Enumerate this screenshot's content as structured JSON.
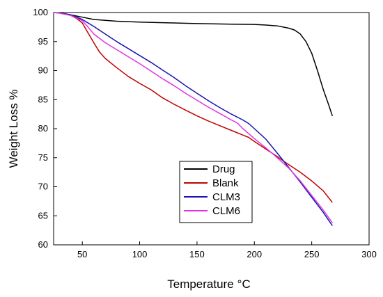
{
  "chart_data": {
    "type": "line",
    "title": "",
    "xlabel": "Temperature",
    "xlabel_unit": "°C",
    "ylabel": "Weight Loss %",
    "xlim": [
      25,
      300
    ],
    "ylim": [
      60,
      100
    ],
    "x_ticks": [
      50,
      100,
      150,
      200,
      250,
      300
    ],
    "y_ticks": [
      60,
      65,
      70,
      75,
      80,
      85,
      90,
      95,
      100
    ],
    "grid": false,
    "legend_position": "bottom-center",
    "series": [
      {
        "name": "Drug",
        "color": "#000000",
        "points": [
          [
            25,
            100
          ],
          [
            30,
            99.95
          ],
          [
            40,
            99.6
          ],
          [
            50,
            99.2
          ],
          [
            60,
            98.8
          ],
          [
            80,
            98.5
          ],
          [
            100,
            98.35
          ],
          [
            120,
            98.25
          ],
          [
            150,
            98.1
          ],
          [
            180,
            98.0
          ],
          [
            200,
            97.95
          ],
          [
            210,
            97.85
          ],
          [
            220,
            97.7
          ],
          [
            230,
            97.3
          ],
          [
            235,
            97.0
          ],
          [
            240,
            96.3
          ],
          [
            245,
            95.0
          ],
          [
            250,
            93.0
          ],
          [
            255,
            90.0
          ],
          [
            260,
            86.8
          ],
          [
            265,
            84.0
          ],
          [
            268,
            82.2
          ]
        ]
      },
      {
        "name": "Blank",
        "color": "#c00000",
        "points": [
          [
            25,
            100
          ],
          [
            30,
            99.9
          ],
          [
            40,
            99.5
          ],
          [
            45,
            99.0
          ],
          [
            50,
            98.2
          ],
          [
            55,
            96.5
          ],
          [
            60,
            94.8
          ],
          [
            65,
            93.2
          ],
          [
            70,
            92.1
          ],
          [
            80,
            90.5
          ],
          [
            90,
            89.0
          ],
          [
            100,
            87.8
          ],
          [
            110,
            86.7
          ],
          [
            120,
            85.3
          ],
          [
            130,
            84.2
          ],
          [
            140,
            83.2
          ],
          [
            150,
            82.2
          ],
          [
            160,
            81.3
          ],
          [
            170,
            80.5
          ],
          [
            180,
            79.7
          ],
          [
            190,
            78.9
          ],
          [
            195,
            78.5
          ],
          [
            200,
            77.8
          ],
          [
            210,
            76.5
          ],
          [
            220,
            75.2
          ],
          [
            230,
            73.8
          ],
          [
            240,
            72.5
          ],
          [
            250,
            71.0
          ],
          [
            260,
            69.3
          ],
          [
            268,
            67.3
          ]
        ]
      },
      {
        "name": "CLM3",
        "color": "#1a12b4",
        "points": [
          [
            25,
            100
          ],
          [
            30,
            99.9
          ],
          [
            40,
            99.6
          ],
          [
            50,
            98.8
          ],
          [
            60,
            97.6
          ],
          [
            70,
            96.3
          ],
          [
            80,
            95.0
          ],
          [
            90,
            93.8
          ],
          [
            100,
            92.6
          ],
          [
            110,
            91.4
          ],
          [
            120,
            90.1
          ],
          [
            130,
            88.8
          ],
          [
            140,
            87.4
          ],
          [
            150,
            86.1
          ],
          [
            160,
            84.8
          ],
          [
            170,
            83.6
          ],
          [
            180,
            82.5
          ],
          [
            190,
            81.5
          ],
          [
            195,
            80.9
          ],
          [
            200,
            80.0
          ],
          [
            210,
            78.2
          ],
          [
            220,
            75.8
          ],
          [
            230,
            73.3
          ],
          [
            240,
            70.8
          ],
          [
            250,
            68.2
          ],
          [
            260,
            65.6
          ],
          [
            268,
            63.3
          ]
        ]
      },
      {
        "name": "CLM6",
        "color": "#e033e0",
        "points": [
          [
            25,
            100
          ],
          [
            30,
            99.9
          ],
          [
            40,
            99.5
          ],
          [
            50,
            98.6
          ],
          [
            55,
            97.5
          ],
          [
            60,
            96.3
          ],
          [
            70,
            94.8
          ],
          [
            80,
            93.6
          ],
          [
            90,
            92.4
          ],
          [
            100,
            91.2
          ],
          [
            110,
            89.9
          ],
          [
            120,
            88.6
          ],
          [
            130,
            87.4
          ],
          [
            140,
            86.1
          ],
          [
            150,
            84.9
          ],
          [
            160,
            83.7
          ],
          [
            170,
            82.6
          ],
          [
            180,
            81.5
          ],
          [
            185,
            81.0
          ],
          [
            190,
            80.0
          ],
          [
            200,
            78.3
          ],
          [
            210,
            76.7
          ],
          [
            220,
            75.0
          ],
          [
            230,
            73.2
          ],
          [
            240,
            71.0
          ],
          [
            250,
            68.5
          ],
          [
            260,
            66.0
          ],
          [
            268,
            63.8
          ]
        ]
      }
    ]
  }
}
